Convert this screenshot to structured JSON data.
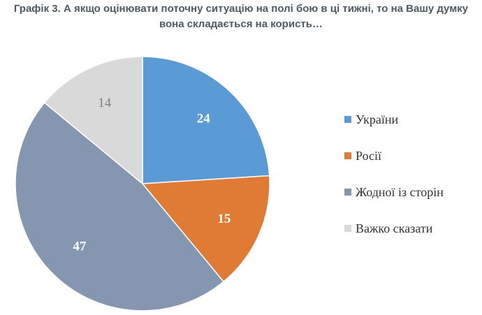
{
  "title_line1": "Графік 3. А якщо оцінювати поточну ситуацію на полі бою в ці тижні, то на Вашу думку",
  "title_line2": "вона складається на користь…",
  "chart_data": {
    "type": "pie",
    "categories": [
      "України",
      "Росії",
      "Жодної із сторін",
      "Важко сказати"
    ],
    "values": [
      24,
      15,
      47,
      14
    ],
    "colors": [
      "#5b9bd5",
      "#e07b35",
      "#8496b0",
      "#d9d9d9"
    ],
    "label_colors": [
      "#ffffff",
      "#ffffff",
      "#ffffff",
      "#808080"
    ],
    "legend_position": "right",
    "start_angle": "12 o'clock",
    "direction": "clockwise"
  }
}
